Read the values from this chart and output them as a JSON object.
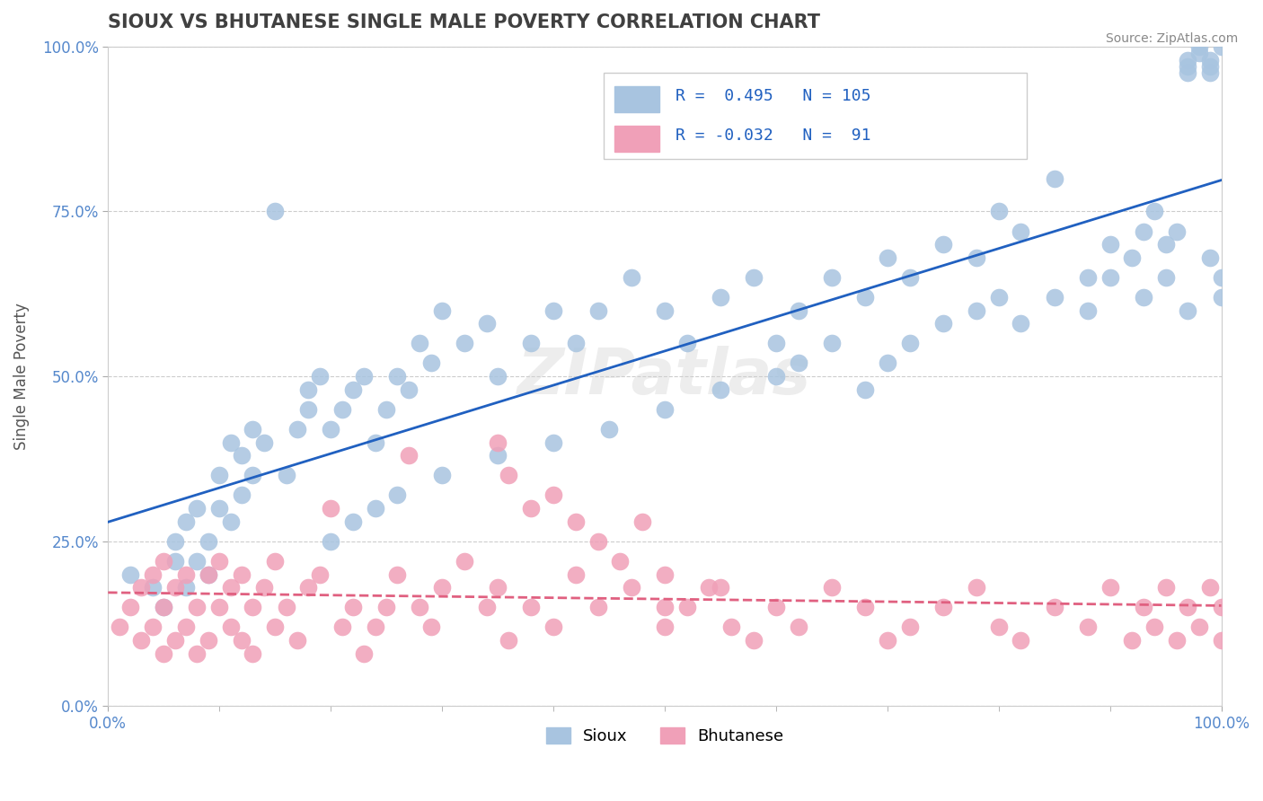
{
  "title": "SIOUX VS BHUTANESE SINGLE MALE POVERTY CORRELATION CHART",
  "source": "Source: ZipAtlas.com",
  "ylabel": "Single Male Poverty",
  "xlabel": "",
  "xlim": [
    0.0,
    1.0
  ],
  "ylim": [
    0.0,
    1.0
  ],
  "xtick_labels": [
    "0.0%",
    "100.0%"
  ],
  "ytick_labels": [
    "0.0%",
    "25.0%",
    "50.0%",
    "75.0%",
    "100.0%"
  ],
  "ytick_positions": [
    0.0,
    0.25,
    0.5,
    0.75,
    1.0
  ],
  "sioux_color": "#a8c4e0",
  "bhutanese_color": "#f0a0b8",
  "sioux_line_color": "#2060c0",
  "bhutanese_line_color": "#e06080",
  "sioux_R": 0.495,
  "sioux_N": 105,
  "bhutanese_R": -0.032,
  "bhutanese_N": 91,
  "watermark": "ZIPatlas",
  "background_color": "#ffffff",
  "grid_color": "#cccccc",
  "title_color": "#404040",
  "sioux_scatter_x": [
    0.02,
    0.04,
    0.05,
    0.06,
    0.06,
    0.07,
    0.07,
    0.08,
    0.08,
    0.09,
    0.09,
    0.1,
    0.1,
    0.11,
    0.11,
    0.12,
    0.12,
    0.13,
    0.13,
    0.14,
    0.15,
    0.16,
    0.17,
    0.18,
    0.18,
    0.19,
    0.2,
    0.21,
    0.22,
    0.23,
    0.24,
    0.25,
    0.26,
    0.27,
    0.28,
    0.29,
    0.3,
    0.32,
    0.34,
    0.35,
    0.38,
    0.4,
    0.42,
    0.44,
    0.47,
    0.5,
    0.52,
    0.55,
    0.58,
    0.6,
    0.62,
    0.65,
    0.68,
    0.7,
    0.72,
    0.75,
    0.78,
    0.8,
    0.82,
    0.85,
    0.88,
    0.9,
    0.92,
    0.93,
    0.94,
    0.95,
    0.96,
    0.97,
    0.97,
    0.97,
    0.98,
    0.98,
    0.99,
    0.99,
    0.99,
    1.0,
    0.2,
    0.22,
    0.24,
    0.26,
    0.3,
    0.35,
    0.4,
    0.45,
    0.5,
    0.55,
    0.6,
    0.62,
    0.65,
    0.68,
    0.7,
    0.72,
    0.75,
    0.78,
    0.8,
    0.82,
    0.85,
    0.88,
    0.9,
    0.93,
    0.95,
    0.97,
    0.99,
    1.0,
    1.0
  ],
  "sioux_scatter_y": [
    0.2,
    0.18,
    0.15,
    0.22,
    0.25,
    0.18,
    0.28,
    0.22,
    0.3,
    0.25,
    0.2,
    0.3,
    0.35,
    0.28,
    0.4,
    0.32,
    0.38,
    0.35,
    0.42,
    0.4,
    0.75,
    0.35,
    0.42,
    0.45,
    0.48,
    0.5,
    0.42,
    0.45,
    0.48,
    0.5,
    0.4,
    0.45,
    0.5,
    0.48,
    0.55,
    0.52,
    0.6,
    0.55,
    0.58,
    0.5,
    0.55,
    0.6,
    0.55,
    0.6,
    0.65,
    0.6,
    0.55,
    0.62,
    0.65,
    0.55,
    0.6,
    0.65,
    0.62,
    0.68,
    0.65,
    0.7,
    0.68,
    0.75,
    0.72,
    0.8,
    0.65,
    0.7,
    0.68,
    0.72,
    0.75,
    0.7,
    0.72,
    0.98,
    0.97,
    0.96,
    1.0,
    0.99,
    0.98,
    0.97,
    0.96,
    1.0,
    0.25,
    0.28,
    0.3,
    0.32,
    0.35,
    0.38,
    0.4,
    0.42,
    0.45,
    0.48,
    0.5,
    0.52,
    0.55,
    0.48,
    0.52,
    0.55,
    0.58,
    0.6,
    0.62,
    0.58,
    0.62,
    0.6,
    0.65,
    0.62,
    0.65,
    0.6,
    0.68,
    0.62,
    0.65
  ],
  "bhutanese_scatter_x": [
    0.01,
    0.02,
    0.03,
    0.03,
    0.04,
    0.04,
    0.05,
    0.05,
    0.05,
    0.06,
    0.06,
    0.07,
    0.07,
    0.08,
    0.08,
    0.09,
    0.09,
    0.1,
    0.1,
    0.11,
    0.11,
    0.12,
    0.12,
    0.13,
    0.13,
    0.14,
    0.15,
    0.15,
    0.16,
    0.17,
    0.18,
    0.19,
    0.2,
    0.21,
    0.22,
    0.23,
    0.24,
    0.25,
    0.26,
    0.27,
    0.28,
    0.29,
    0.3,
    0.32,
    0.34,
    0.35,
    0.36,
    0.38,
    0.4,
    0.42,
    0.44,
    0.47,
    0.5,
    0.35,
    0.36,
    0.38,
    0.4,
    0.42,
    0.44,
    0.46,
    0.48,
    0.5,
    0.52,
    0.54,
    0.56,
    0.58,
    0.6,
    0.62,
    0.65,
    0.68,
    0.7,
    0.72,
    0.75,
    0.78,
    0.8,
    0.82,
    0.85,
    0.88,
    0.9,
    0.92,
    0.93,
    0.94,
    0.95,
    0.96,
    0.97,
    0.98,
    0.99,
    1.0,
    1.0,
    0.5,
    0.55
  ],
  "bhutanese_scatter_y": [
    0.12,
    0.15,
    0.1,
    0.18,
    0.12,
    0.2,
    0.08,
    0.15,
    0.22,
    0.1,
    0.18,
    0.12,
    0.2,
    0.15,
    0.08,
    0.2,
    0.1,
    0.15,
    0.22,
    0.12,
    0.18,
    0.1,
    0.2,
    0.15,
    0.08,
    0.18,
    0.12,
    0.22,
    0.15,
    0.1,
    0.18,
    0.2,
    0.3,
    0.12,
    0.15,
    0.08,
    0.12,
    0.15,
    0.2,
    0.38,
    0.15,
    0.12,
    0.18,
    0.22,
    0.15,
    0.18,
    0.1,
    0.15,
    0.12,
    0.2,
    0.15,
    0.18,
    0.12,
    0.4,
    0.35,
    0.3,
    0.32,
    0.28,
    0.25,
    0.22,
    0.28,
    0.2,
    0.15,
    0.18,
    0.12,
    0.1,
    0.15,
    0.12,
    0.18,
    0.15,
    0.1,
    0.12,
    0.15,
    0.18,
    0.12,
    0.1,
    0.15,
    0.12,
    0.18,
    0.1,
    0.15,
    0.12,
    0.18,
    0.1,
    0.15,
    0.12,
    0.18,
    0.1,
    0.15,
    0.15,
    0.18
  ]
}
